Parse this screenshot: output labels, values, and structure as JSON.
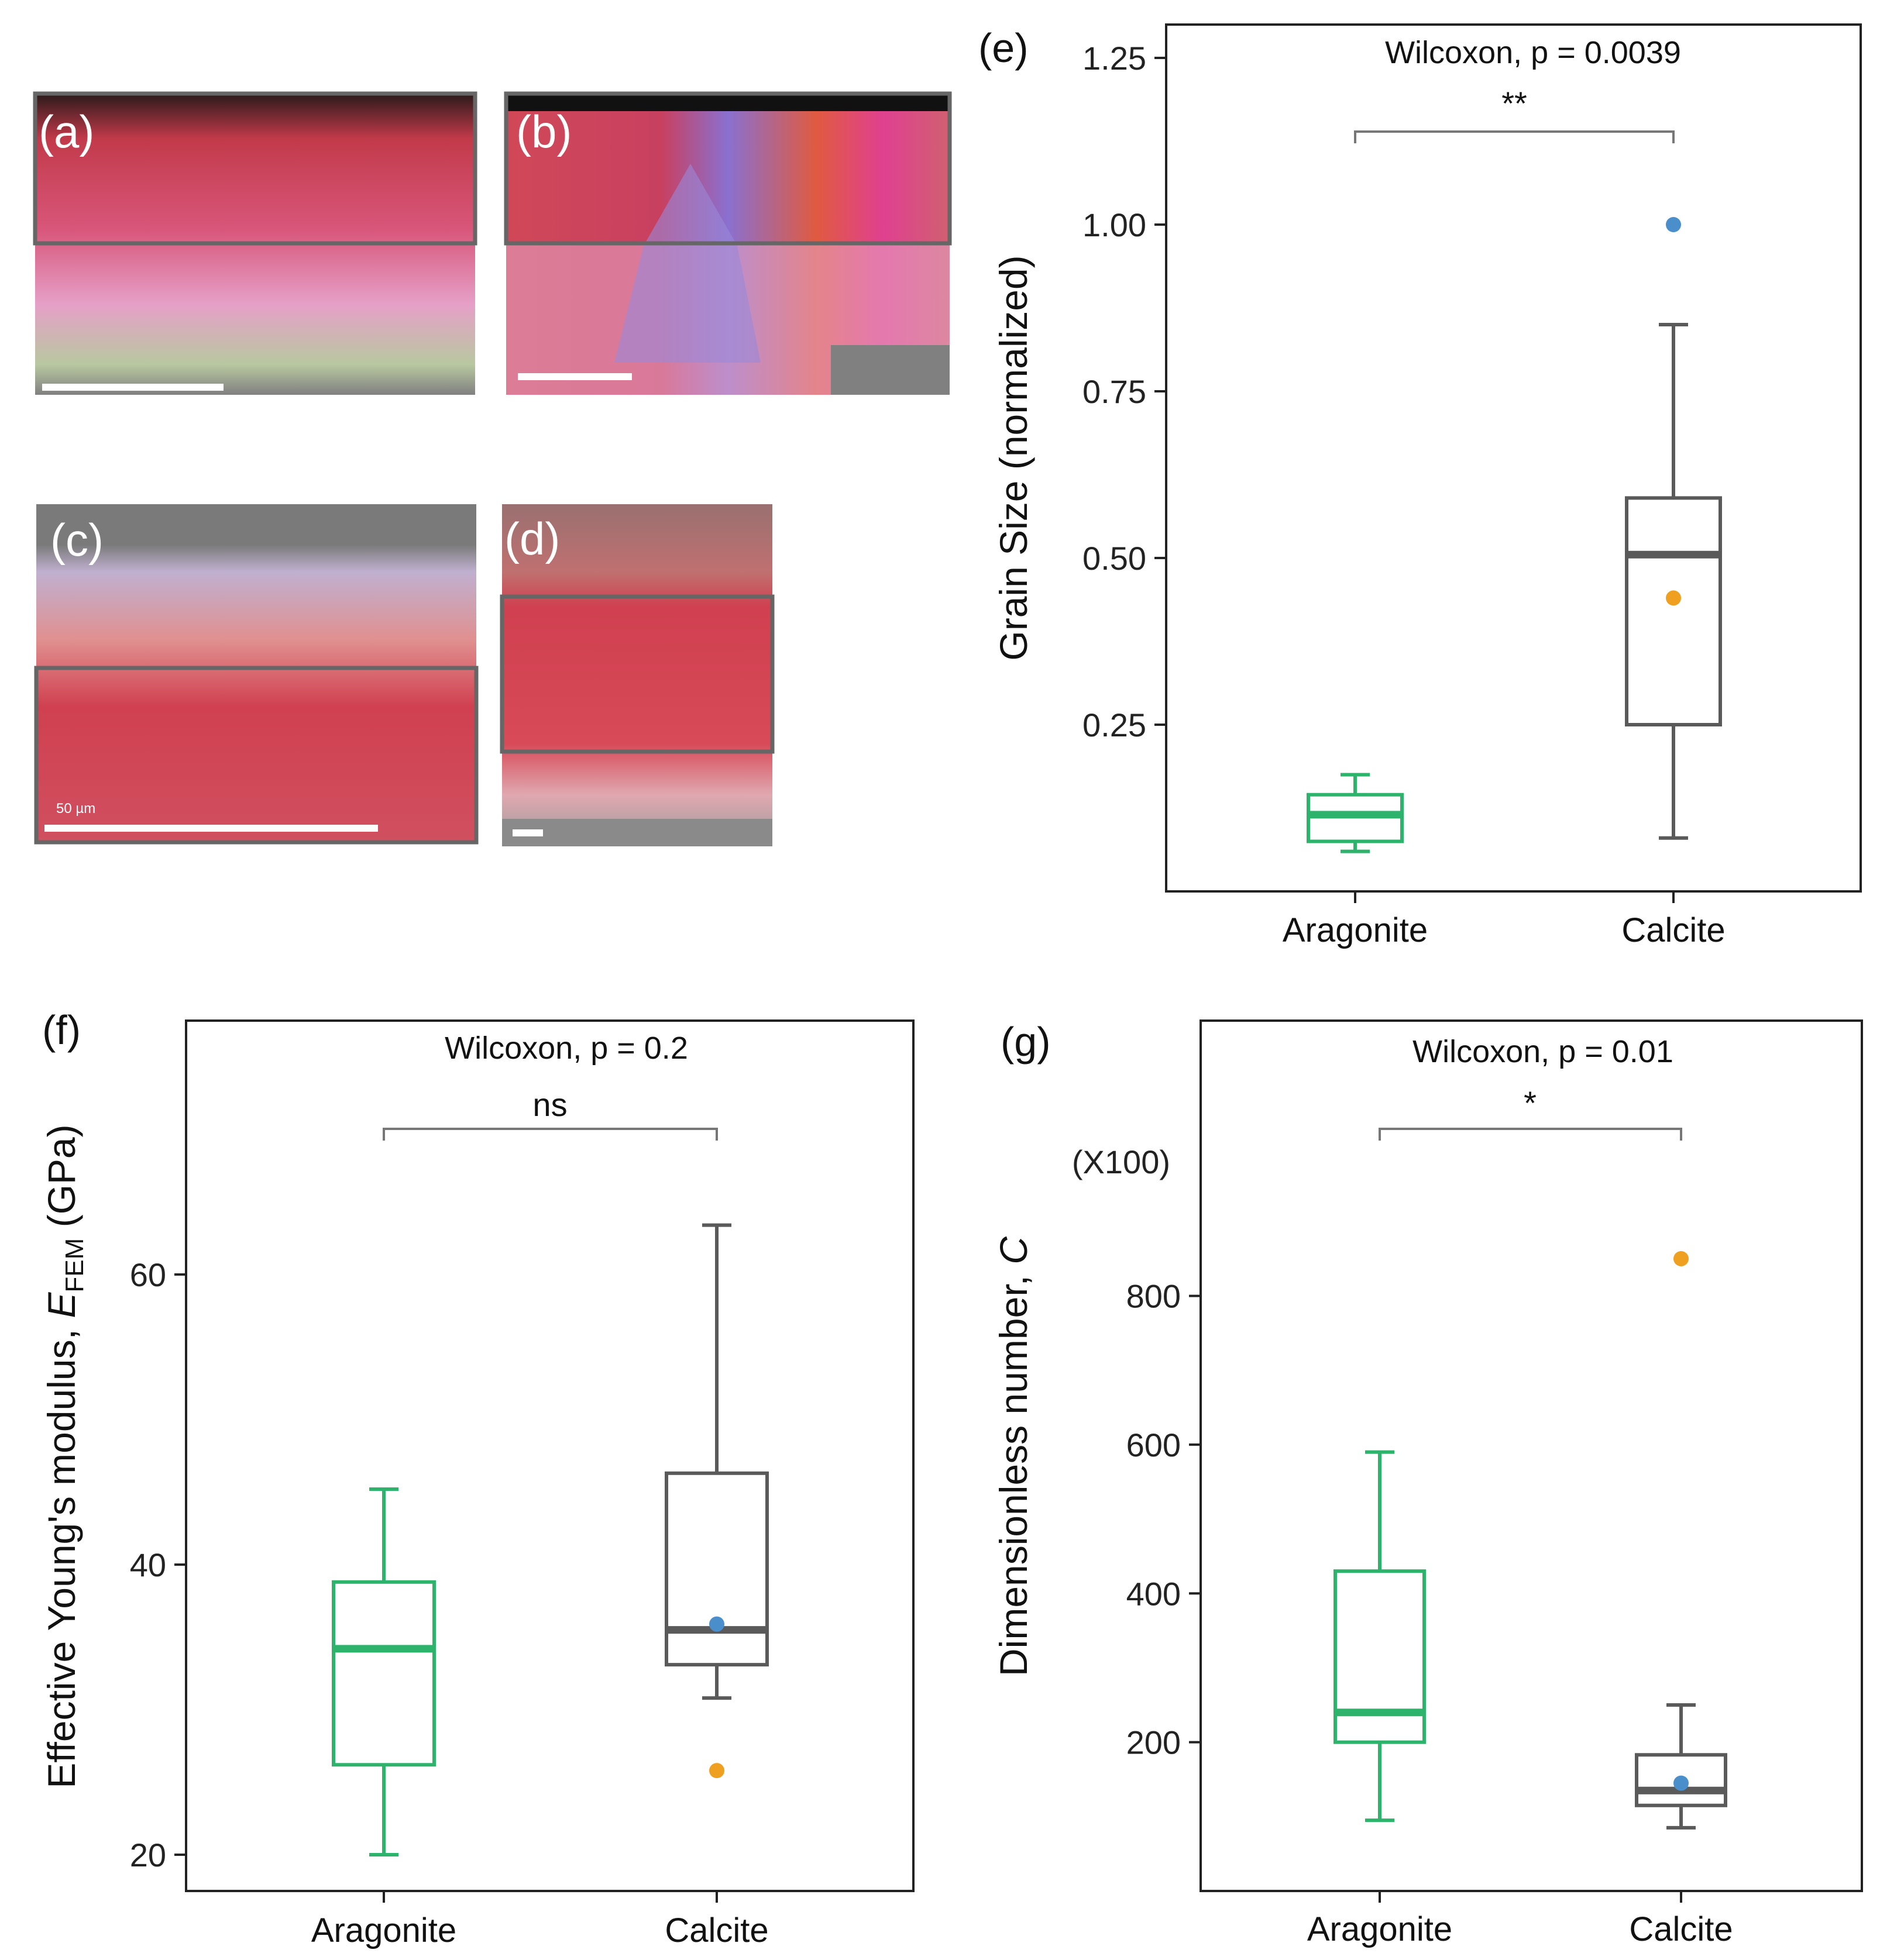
{
  "micrographs": [
    {
      "id": "a",
      "label": "(a)"
    },
    {
      "id": "b",
      "label": "(b)"
    },
    {
      "id": "c",
      "label": "(c)",
      "scale_text": "50 µm"
    },
    {
      "id": "d",
      "label": "(d)"
    }
  ],
  "colors": {
    "aragonite": "#2db36b",
    "calcite": "#5a5a5a",
    "outlier_blue": "#4a8fcc",
    "outlier_orange": "#f0a020"
  },
  "chart_data": [
    {
      "id": "e",
      "panel_label": "(e)",
      "type": "box",
      "categories": [
        "Aragonite",
        "Calcite"
      ],
      "ylabel": "Grain Size (normalized)",
      "ylim": [
        0.0,
        1.3
      ],
      "yticks": [
        0.25,
        0.5,
        0.75,
        1.0,
        1.25
      ],
      "ytick_labels": [
        "0.25",
        "0.50",
        "0.75",
        "1.00",
        "1.25"
      ],
      "stat_text": "Wilcoxon, p = 0.0039",
      "sig": "**",
      "boxes": [
        {
          "name": "Aragonite",
          "color": "aragonite",
          "whisker_low": 0.06,
          "q1": 0.075,
          "median": 0.115,
          "q3": 0.145,
          "whisker_high": 0.175,
          "outliers": []
        },
        {
          "name": "Calcite",
          "color": "calcite",
          "whisker_low": 0.08,
          "q1": 0.25,
          "median": 0.505,
          "q3": 0.59,
          "whisker_high": 0.85,
          "outliers": [
            {
              "value": 1.0,
              "color": "outlier_blue"
            },
            {
              "value": 0.44,
              "color": "outlier_orange"
            }
          ]
        }
      ]
    },
    {
      "id": "f",
      "panel_label": "(f)",
      "type": "box",
      "categories": [
        "Aragonite",
        "Calcite"
      ],
      "ylabel_main": "Effective Young's modulus, ",
      "ylabel_var": "E",
      "ylabel_sub": "FEM",
      "ylabel_unit": " (GPa)",
      "ylim": [
        17.5,
        77.5
      ],
      "yticks": [
        20,
        40,
        60
      ],
      "ytick_labels": [
        "20",
        "40",
        "60"
      ],
      "stat_text": "Wilcoxon, p = 0.2",
      "sig": "ns",
      "boxes": [
        {
          "name": "Aragonite",
          "color": "aragonite",
          "whisker_low": 20,
          "q1": 26.2,
          "median": 34.2,
          "q3": 38.8,
          "whisker_high": 45.2,
          "outliers": []
        },
        {
          "name": "Calcite",
          "color": "calcite",
          "whisker_low": 30.8,
          "q1": 33.1,
          "median": 35.5,
          "q3": 46.3,
          "whisker_high": 63.4,
          "outliers": [
            {
              "value": 35.9,
              "color": "outlier_blue"
            },
            {
              "value": 25.8,
              "color": "outlier_orange"
            }
          ]
        }
      ]
    },
    {
      "id": "g",
      "panel_label": "(g)",
      "type": "box",
      "categories": [
        "Aragonite",
        "Calcite"
      ],
      "ylabel_main": "Dimensionless number, ",
      "ylabel_var": "C",
      "multiplier": "(X100)",
      "ylim": [
        0,
        1170
      ],
      "yticks": [
        200,
        400,
        600,
        800
      ],
      "ytick_labels": [
        "200",
        "400",
        "600",
        "800"
      ],
      "stat_text": "Wilcoxon, p = 0.01",
      "sig": "*",
      "boxes": [
        {
          "name": "Aragonite",
          "color": "aragonite",
          "whisker_low": 95,
          "q1": 200,
          "median": 240,
          "q3": 430,
          "whisker_high": 590,
          "outliers": []
        },
        {
          "name": "Calcite",
          "color": "calcite",
          "whisker_low": 85,
          "q1": 115,
          "median": 135,
          "q3": 183,
          "whisker_high": 250,
          "outliers": [
            {
              "value": 145,
              "color": "outlier_blue"
            },
            {
              "value": 850,
              "color": "outlier_orange"
            }
          ]
        }
      ]
    }
  ]
}
